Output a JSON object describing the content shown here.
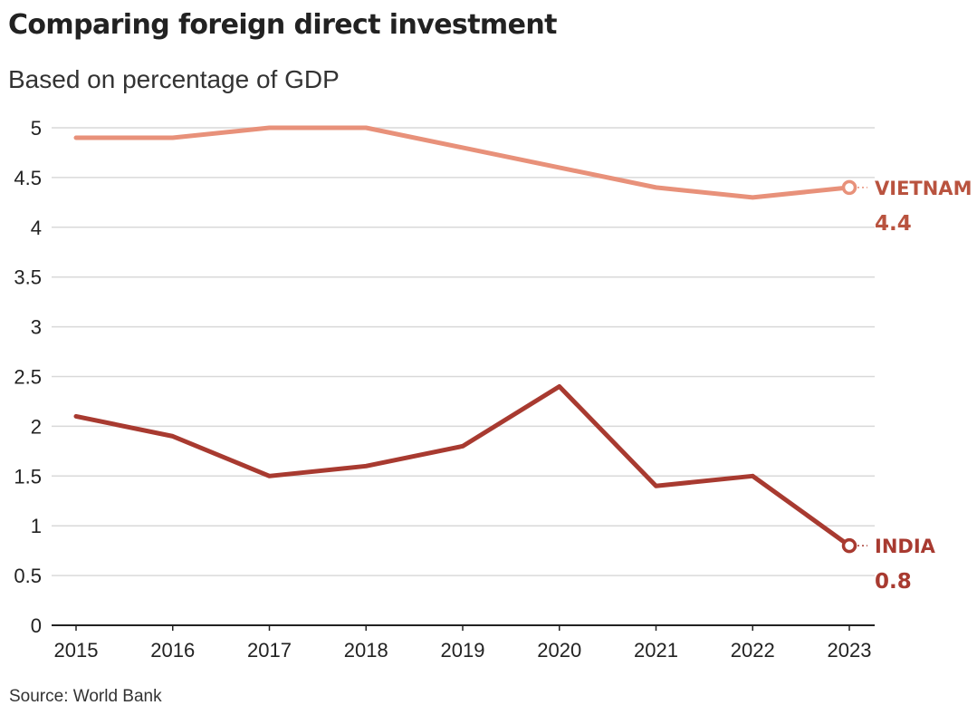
{
  "header": {
    "title": "Comparing foreign direct investment",
    "subtitle": "Based on percentage of GDP"
  },
  "footer": {
    "source": "Source: World Bank"
  },
  "colors": {
    "vietnam": "#e8917a",
    "vietnam_label": "#b9533f",
    "india": "#a83a30",
    "grid": "#d9d9d9",
    "axis": "#222222"
  },
  "chart_data": {
    "type": "line",
    "title": "Comparing foreign direct investment",
    "subtitle": "Based on percentage of GDP",
    "xlabel": "",
    "ylabel": "",
    "x": [
      2015,
      2016,
      2017,
      2018,
      2019,
      2020,
      2021,
      2022,
      2023
    ],
    "x_tick_labels": [
      "2015",
      "2016",
      "2017",
      "2018",
      "2019",
      "2020",
      "2021",
      "2022",
      "2023"
    ],
    "ylim": [
      0,
      5
    ],
    "y_ticks": [
      0,
      0.5,
      1,
      1.5,
      2,
      2.5,
      3,
      3.5,
      4,
      4.5,
      5
    ],
    "y_tick_labels": [
      "0",
      "0.5",
      "1",
      "1.5",
      "2",
      "2.5",
      "3",
      "3.5",
      "4",
      "4.5",
      "5"
    ],
    "grid": true,
    "legend": "direct labels at line ends",
    "series": [
      {
        "name": "VIETNAM",
        "values": [
          4.9,
          4.9,
          5.0,
          5.0,
          4.8,
          4.6,
          4.4,
          4.3,
          4.4
        ],
        "end_label": "VIETNAM",
        "end_value_label": "4.4",
        "color": "#e8917a",
        "label_color": "#b9533f"
      },
      {
        "name": "INDIA",
        "values": [
          2.1,
          1.9,
          1.5,
          1.6,
          1.8,
          2.4,
          1.4,
          1.5,
          0.8
        ],
        "end_label": "INDIA",
        "end_value_label": "0.8",
        "color": "#a83a30",
        "label_color": "#a83a30"
      }
    ],
    "source": "Source: World Bank"
  }
}
